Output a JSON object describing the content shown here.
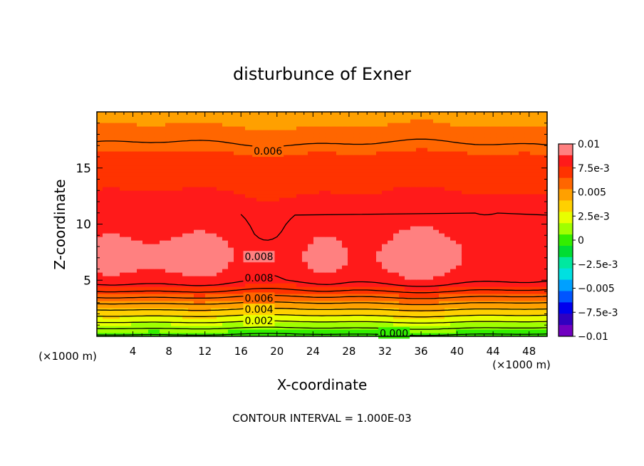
{
  "chart_data": {
    "type": "contour",
    "title": "disturbunce of Exner",
    "xlabel": "X-coordinate",
    "ylabel": "Z-coordinate",
    "x_unit_left": "(×1000 m)",
    "x_unit_right": "(×1000 m)",
    "xlim": [
      0,
      50
    ],
    "ylim": [
      0,
      20
    ],
    "x_ticks": [
      4,
      8,
      12,
      16,
      20,
      24,
      28,
      32,
      36,
      40,
      44,
      48
    ],
    "y_ticks": [
      5,
      10,
      15
    ],
    "footnote": "CONTOUR INTERVAL = 1.000E-03",
    "contour_labels": [
      {
        "text": "0.006",
        "x": 19,
        "z": 16.5
      },
      {
        "text": "0.008",
        "x": 18,
        "z": 7.1
      },
      {
        "text": "0.008",
        "x": 18,
        "z": 5.2
      },
      {
        "text": "0.006",
        "x": 18,
        "z": 3.4
      },
      {
        "text": "0.004",
        "x": 18,
        "z": 2.4
      },
      {
        "text": "0.002",
        "x": 18,
        "z": 1.4
      },
      {
        "text": "0.000",
        "x": 33,
        "z": 0.3
      }
    ],
    "profile": {
      "z": [
        0,
        0.5,
        1,
        1.5,
        2,
        2.5,
        3,
        3.5,
        4,
        4.5,
        5,
        6,
        7,
        8,
        9,
        10,
        11,
        12,
        13,
        14,
        15,
        16,
        17,
        18,
        19,
        20
      ],
      "value": [
        -0.0003,
        0.0006,
        0.0015,
        0.0024,
        0.0033,
        0.0042,
        0.0051,
        0.006,
        0.0069,
        0.0077,
        0.0083,
        0.0087,
        0.0089,
        0.0088,
        0.0085,
        0.0083,
        0.0081,
        0.0079,
        0.0076,
        0.0073,
        0.007,
        0.0067,
        0.0061,
        0.0056,
        0.0052,
        0.0049
      ]
    },
    "colorbar": {
      "min": -0.01,
      "max": 0.01,
      "tick_labels": [
        "0.01",
        "7.5e-3",
        "0.005",
        "2.5e-3",
        "0",
        "−2.5e-3",
        "−0.005",
        "−7.5e-3",
        "−0.01"
      ],
      "tick_values": [
        0.01,
        0.0075,
        0.005,
        0.0025,
        0,
        -0.0025,
        -0.005,
        -0.0075,
        -0.01
      ],
      "colors_top_to_bottom": [
        "#ff8080",
        "#ff1a1a",
        "#ff3300",
        "#ff6600",
        "#ffa000",
        "#ffd000",
        "#e8ff00",
        "#a0ff00",
        "#33ee00",
        "#00dd33",
        "#00e8a0",
        "#00e0e0",
        "#00a0ff",
        "#0055ff",
        "#0000ee",
        "#3000c0",
        "#7000c0"
      ]
    }
  }
}
